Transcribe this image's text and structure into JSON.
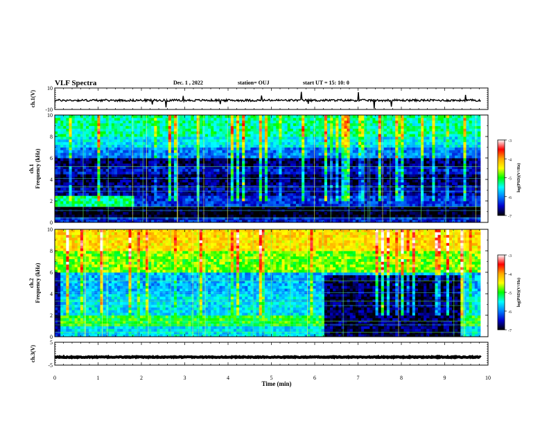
{
  "header": {
    "title": "VLF Spectra",
    "date": "Dec. 1 , 2022",
    "station": "station= OUJ",
    "start": "start  UT =   15: 10: 0"
  },
  "colorbar": {
    "label": "log(PSD)(V²/Hz)",
    "ticks": [
      "-3",
      "-4",
      "-5",
      "-6",
      "-7"
    ],
    "stops": [
      "#ffffff",
      "#ff0000",
      "#ffaa00",
      "#ffff00",
      "#00ff00",
      "#00ffff",
      "#0080ff",
      "#0000cc",
      "#000000"
    ]
  },
  "chart_data": [
    {
      "type": "line",
      "panel": "ch.1 waveform",
      "ylabel": "ch.1(V)",
      "ylim": [
        -10,
        10
      ],
      "yticks": [
        "10",
        "-10"
      ],
      "x": [
        0,
        10
      ],
      "y_mean": -1.5,
      "y_ripple": 1.0,
      "line_color": "#000000"
    },
    {
      "type": "heatmap",
      "panel": "ch.1 spectrogram",
      "ylabel": "ch.1\nFrequency (kHz)",
      "ylim": [
        0,
        10
      ],
      "yticks": [
        "0",
        "2",
        "4",
        "6",
        "8",
        "10"
      ],
      "colorbar_range": [
        -7,
        -3
      ],
      "bands": [
        {
          "f0": 0,
          "f1": 0.6,
          "value": -6.4
        },
        {
          "f0": 0.6,
          "f1": 1.4,
          "value": -7.0
        },
        {
          "f0": 1.4,
          "f1": 2.4,
          "value": -6.3
        },
        {
          "f0": 2.4,
          "f1": 3.4,
          "value": -6.6
        },
        {
          "f0": 3.4,
          "f1": 4.4,
          "value": -6.8
        },
        {
          "f0": 4.4,
          "f1": 5.2,
          "value": -6.5
        },
        {
          "f0": 5.2,
          "f1": 6.0,
          "value": -6.8
        },
        {
          "f0": 6.0,
          "f1": 7.0,
          "value": -6.0
        },
        {
          "f0": 7.0,
          "f1": 8.0,
          "value": -5.6
        },
        {
          "f0": 8.0,
          "f1": 10.0,
          "value": -5.3
        }
      ],
      "patches": [
        {
          "t0": 0,
          "t1": 1.85,
          "f0": 1.5,
          "f1": 2.4,
          "value": -5.2
        }
      ]
    },
    {
      "type": "heatmap",
      "panel": "ch.2 spectrogram",
      "ylabel": "ch.2\nFrequency (kHz)",
      "ylim": [
        0,
        10
      ],
      "yticks": [
        "0",
        "2",
        "4",
        "6",
        "8",
        "10"
      ],
      "colorbar_range": [
        -7,
        -3
      ],
      "bands": [
        {
          "f0": 0,
          "f1": 1.0,
          "value": -5.6
        },
        {
          "f0": 1.0,
          "f1": 2.0,
          "value": -5.0
        },
        {
          "f0": 2.0,
          "f1": 4.0,
          "value": -5.6
        },
        {
          "f0": 4.0,
          "f1": 6.0,
          "value": -5.8
        },
        {
          "f0": 6.0,
          "f1": 8.0,
          "value": -4.8
        },
        {
          "f0": 8.0,
          "f1": 10.0,
          "value": -4.3
        }
      ],
      "patches": [
        {
          "t0": 6.2,
          "t1": 9.35,
          "f0": 0,
          "f1": 5.8,
          "value": -6.8
        },
        {
          "t0": 0,
          "t1": 0.15,
          "f0": 0,
          "f1": 6.0,
          "value": -6.6
        }
      ]
    },
    {
      "type": "line",
      "panel": "ch.3 waveform",
      "ylabel": "ch.3(V)",
      "ylim": [
        -5,
        5
      ],
      "yticks": [
        "5",
        "-5"
      ],
      "x": [
        0,
        10
      ],
      "y_mean": -1.5,
      "y_ripple": 0.2,
      "line_color": "#000000"
    }
  ],
  "xaxis": {
    "label": "Time  (min)",
    "range": [
      0,
      10
    ],
    "ticks": [
      "0",
      "1",
      "2",
      "3",
      "4",
      "5",
      "6",
      "7",
      "8",
      "9",
      "10"
    ]
  }
}
